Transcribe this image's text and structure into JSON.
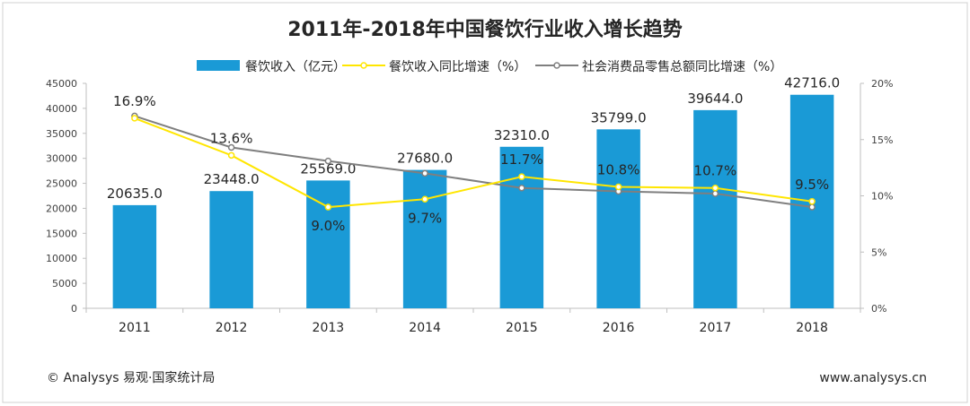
{
  "chart_data": {
    "type": "bar",
    "title": "2011年-2018年中国餐饮行业收入增长趋势",
    "categories": [
      "2011",
      "2012",
      "2013",
      "2014",
      "2015",
      "2016",
      "2017",
      "2018"
    ],
    "series": [
      {
        "name": "餐饮收入（亿元）",
        "kind": "bar",
        "axis": "left",
        "color": "#1a9ad6",
        "values": [
          20635.0,
          23448.0,
          25569.0,
          27680.0,
          32310.0,
          35799.0,
          39644.0,
          42716.0
        ],
        "labels": [
          "20635.0",
          "23448.0",
          "25569.0",
          "27680.0",
          "32310.0",
          "35799.0",
          "39644.0",
          "42716.0"
        ]
      },
      {
        "name": "餐饮收入同比增速（%）",
        "kind": "line",
        "axis": "right",
        "color": "#ffe600",
        "values": [
          16.9,
          13.6,
          9.0,
          9.7,
          11.7,
          10.8,
          10.7,
          9.5
        ],
        "labels": [
          "16.9%",
          "13.6%",
          "9.0%",
          "9.7%",
          "11.7%",
          "10.8%",
          "10.7%",
          "9.5%"
        ]
      },
      {
        "name": "社会消费品零售总额同比增速（%）",
        "kind": "line",
        "axis": "right",
        "color": "#7f7f7f",
        "values": [
          17.1,
          14.3,
          13.1,
          12.0,
          10.7,
          10.4,
          10.2,
          9.0
        ]
      }
    ],
    "left_axis": {
      "min": 0,
      "max": 45000,
      "ticks": [
        "0",
        "5000",
        "10000",
        "15000",
        "20000",
        "25000",
        "30000",
        "35000",
        "40000",
        "45000"
      ]
    },
    "right_axis": {
      "min": 0,
      "max": 20,
      "ticks": [
        "0%",
        "5%",
        "10%",
        "15%",
        "20%"
      ]
    },
    "legend_position": "top",
    "grid": false
  },
  "footer": {
    "source": "© Analysys 易观·国家统计局",
    "website": "www.analysys.cn"
  }
}
